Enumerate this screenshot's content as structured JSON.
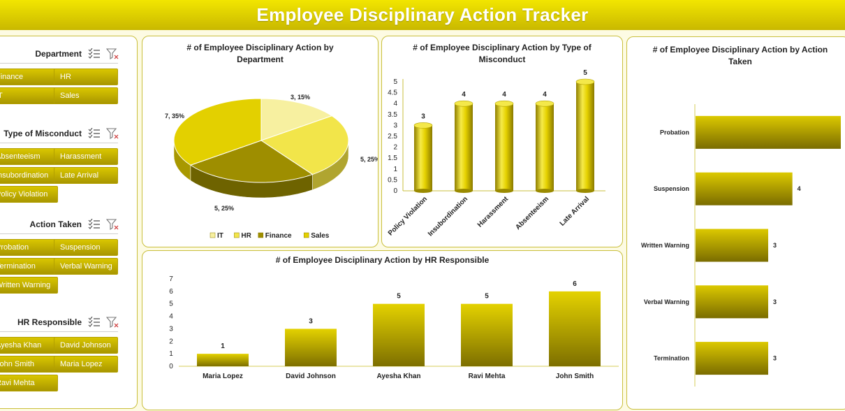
{
  "title": "Employee Disciplinary Action Tracker",
  "slicers": [
    {
      "title": "Department",
      "items": [
        "Finance",
        "HR",
        "IT",
        "Sales"
      ]
    },
    {
      "title": "Type of Misconduct",
      "items": [
        "Absenteeism",
        "Harassment",
        "Insubordination",
        "Late Arrival",
        "Policy Violation"
      ]
    },
    {
      "title": "Action Taken",
      "items": [
        "Probation",
        "Suspension",
        "Termination",
        "Verbal Warning",
        "Written Warning"
      ]
    },
    {
      "title": "HR Responsible",
      "items": [
        "Ayesha Khan",
        "David Johnson",
        "John Smith",
        "Maria Lopez",
        "Ravi Mehta"
      ]
    }
  ],
  "chart_data": [
    {
      "type": "pie",
      "title": "# of Employee Disciplinary Action by Department",
      "categories": [
        "IT",
        "HR",
        "Finance",
        "Sales"
      ],
      "values": [
        3,
        5,
        5,
        7
      ],
      "percents": [
        "15%",
        "25%",
        "25%",
        "35%"
      ],
      "legend": "bottom",
      "colors": [
        "#f7f0a0",
        "#f2e54a",
        "#9e8e00",
        "#e3d000"
      ]
    },
    {
      "type": "bar",
      "title": "# of Employee Disciplinary Action by Type of Misconduct",
      "categories": [
        "Policy Violation",
        "Insubordination",
        "Harassment",
        "Absenteeism",
        "Late Arrival"
      ],
      "values": [
        3,
        4,
        4,
        4,
        5
      ],
      "ylim": [
        0,
        5
      ],
      "yticks": [
        "0",
        "0.5",
        "1",
        "1.5",
        "2",
        "2.5",
        "3",
        "3.5",
        "4",
        "4.5",
        "5"
      ]
    },
    {
      "type": "bar",
      "title": "# of Employee Disciplinary Action by HR Responsible",
      "categories": [
        "Maria Lopez",
        "David Johnson",
        "Ayesha Khan",
        "Ravi Mehta",
        "John Smith"
      ],
      "values": [
        1,
        3,
        5,
        5,
        6
      ],
      "ylim": [
        0,
        7
      ],
      "yticks": [
        "0",
        "1",
        "2",
        "3",
        "4",
        "5",
        "6",
        "7"
      ]
    },
    {
      "type": "bar",
      "orientation": "horizontal",
      "title": "# of Employee Disciplinary Action by Action Taken",
      "categories": [
        "Probation",
        "Suspension",
        "Written Warning",
        "Verbal Warning",
        "Termination"
      ],
      "values": [
        6,
        4,
        3,
        3,
        3
      ],
      "data_labels": [
        "",
        "4",
        "3",
        "3",
        "3"
      ]
    }
  ]
}
